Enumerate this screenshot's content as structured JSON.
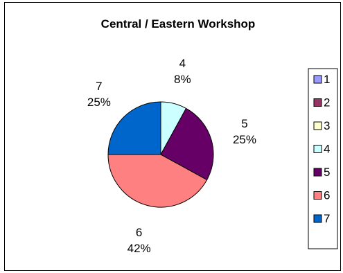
{
  "chart_data": {
    "type": "pie",
    "title": "Central / Eastern Workshop",
    "categories": [
      "1",
      "2",
      "3",
      "4",
      "5",
      "6",
      "7"
    ],
    "values": [
      0,
      0,
      0,
      8,
      25,
      42,
      25
    ],
    "value_labels": [
      "0%",
      "0%",
      "0%",
      "8%",
      "25%",
      "42%",
      "25%"
    ],
    "colors": [
      "#9999FF",
      "#993366",
      "#FFFFCC",
      "#CCFFFF",
      "#660066",
      "#FF8080",
      "#0066CC"
    ],
    "legend": {
      "position": "right",
      "entries": [
        "1",
        "2",
        "3",
        "4",
        "5",
        "6",
        "7"
      ]
    }
  }
}
